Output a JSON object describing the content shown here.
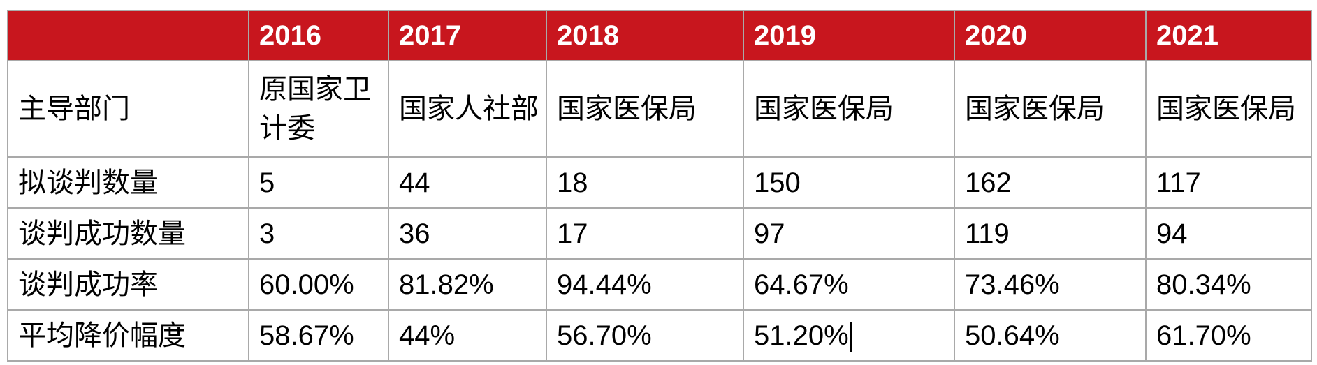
{
  "table": {
    "header": {
      "corner": "",
      "years": [
        "2016",
        "2017",
        "2018",
        "2019",
        "2020",
        "2021"
      ]
    },
    "rows": [
      {
        "label": "主导部门",
        "values": [
          "原国家卫计委",
          "国家人社部",
          "国家医保局",
          "国家医保局",
          "国家医保局",
          "国家医保局"
        ]
      },
      {
        "label": "拟谈判数量",
        "values": [
          "5",
          "44",
          "18",
          "150",
          "162",
          "117"
        ]
      },
      {
        "label": "谈判成功数量",
        "values": [
          "3",
          "36",
          "17",
          "97",
          "119",
          "94"
        ]
      },
      {
        "label": "谈判成功率",
        "values": [
          "60.00%",
          "81.82%",
          "94.44%",
          "64.67%",
          "73.46%",
          "80.34%"
        ]
      },
      {
        "label": "平均降价幅度",
        "values": [
          "58.67%",
          "44%",
          "56.70%",
          "51.20%",
          "50.64%",
          "61.70%"
        ]
      }
    ]
  },
  "colors": {
    "header_bg": "#c8161e",
    "header_text": "#ffffff",
    "border": "#a9a9a9"
  }
}
